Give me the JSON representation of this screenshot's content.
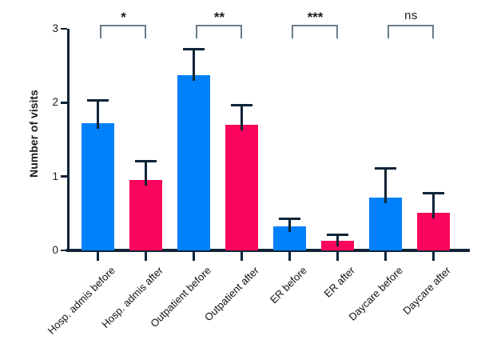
{
  "figure": {
    "background": "#ffffff",
    "axis_color": "#0f2437",
    "bracket_color": "#6b7c87"
  },
  "chart_data": {
    "type": "bar",
    "title": "",
    "xlabel": "",
    "ylabel": "Number of visits",
    "ylim": [
      0,
      3
    ],
    "y_ticks": [
      "0",
      "1",
      "2",
      "3"
    ],
    "grid": false,
    "legend": null,
    "colors": {
      "before": "#0080fa",
      "after": "#fa045e"
    },
    "categories": [
      "Hosp. admis before",
      "Hosp. admis after",
      "Outpatient before",
      "Outpatient after",
      "ER before",
      "ER after",
      "Daycare before",
      "Daycare after"
    ],
    "bars": [
      {
        "label": "Hosp. admis before",
        "group": "before",
        "value": 1.72,
        "error_top": 2.05
      },
      {
        "label": "Hosp. admis after",
        "group": "after",
        "value": 0.95,
        "error_top": 1.22
      },
      {
        "label": "Outpatient before",
        "group": "before",
        "value": 2.37,
        "error_top": 2.74
      },
      {
        "label": "Outpatient after",
        "group": "after",
        "value": 1.7,
        "error_top": 1.98
      },
      {
        "label": "ER before",
        "group": "before",
        "value": 0.32,
        "error_top": 0.44
      },
      {
        "label": "ER after",
        "group": "after",
        "value": 0.13,
        "error_top": 0.23
      },
      {
        "label": "Daycare before",
        "group": "before",
        "value": 0.71,
        "error_top": 1.13
      },
      {
        "label": "Daycare after",
        "group": "after",
        "value": 0.51,
        "error_top": 0.79
      }
    ],
    "significance": [
      {
        "pair": [
          0,
          1
        ],
        "label": "*"
      },
      {
        "pair": [
          2,
          3
        ],
        "label": "**"
      },
      {
        "pair": [
          4,
          5
        ],
        "label": "***"
      },
      {
        "pair": [
          6,
          7
        ],
        "label": "ns"
      }
    ]
  }
}
